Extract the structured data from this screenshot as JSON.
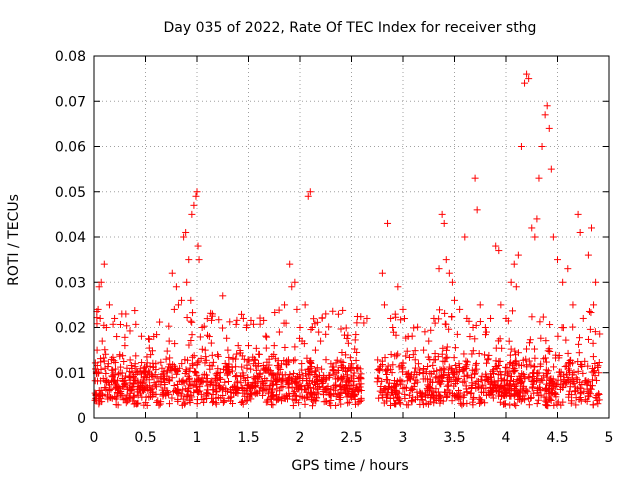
{
  "chart_data": {
    "type": "scatter",
    "title": "Day 035 of 2022, Rate Of TEC Index for receiver sthg",
    "xlabel": "GPS time / hours",
    "ylabel": "ROTI / TECUs",
    "xlim": [
      0,
      5
    ],
    "ylim": [
      0,
      0.08
    ],
    "grid": true,
    "marker": "+",
    "color": "#ff0000",
    "xticks": [
      0,
      0.5,
      1,
      1.5,
      2,
      2.5,
      3,
      3.5,
      4,
      4.5,
      5
    ],
    "xtick_labels": [
      "0",
      "0.5",
      "1",
      "1.5",
      "2",
      "2.5",
      "3",
      "3.5",
      "4",
      "4.5",
      "5"
    ],
    "yticks": [
      0,
      0.01,
      0.02,
      0.03,
      0.04,
      0.05,
      0.06,
      0.07,
      0.08
    ],
    "ytick_labels": [
      "0",
      "0.01",
      "0.02",
      "0.03",
      "0.04",
      "0.05",
      "0.06",
      "0.07",
      "0.08"
    ],
    "series": [
      {
        "name": "ROTI",
        "points": [
          [
            0.02,
            0.005
          ],
          [
            0.03,
            0.015
          ],
          [
            0.04,
            0.024
          ],
          [
            0.05,
            0.029
          ],
          [
            0.06,
            0.022
          ],
          [
            0.07,
            0.03
          ],
          [
            0.08,
            0.017
          ],
          [
            0.1,
            0.034
          ],
          [
            0.12,
            0.02
          ],
          [
            0.14,
            0.012
          ],
          [
            0.15,
            0.025
          ],
          [
            0.17,
            0.008
          ],
          [
            0.2,
            0.022
          ],
          [
            0.22,
            0.018
          ],
          [
            0.25,
            0.014
          ],
          [
            0.27,
            0.023
          ],
          [
            0.3,
            0.016
          ],
          [
            0.32,
            0.011
          ],
          [
            0.35,
            0.009
          ],
          [
            0.38,
            0.007
          ],
          [
            0.4,
            0.012
          ],
          [
            0.45,
            0.006
          ],
          [
            0.5,
            0.01
          ],
          [
            0.55,
            0.014
          ],
          [
            0.58,
            0.018
          ],
          [
            0.6,
            0.012
          ],
          [
            0.63,
            0.008
          ],
          [
            0.66,
            0.011
          ],
          [
            0.7,
            0.013
          ],
          [
            0.73,
            0.017
          ],
          [
            0.76,
            0.032
          ],
          [
            0.78,
            0.024
          ],
          [
            0.8,
            0.029
          ],
          [
            0.82,
            0.025
          ],
          [
            0.85,
            0.026
          ],
          [
            0.87,
            0.04
          ],
          [
            0.89,
            0.041
          ],
          [
            0.9,
            0.03
          ],
          [
            0.92,
            0.035
          ],
          [
            0.94,
            0.026
          ],
          [
            0.95,
            0.045
          ],
          [
            0.97,
            0.047
          ],
          [
            0.99,
            0.049
          ],
          [
            1.0,
            0.05
          ],
          [
            1.01,
            0.038
          ],
          [
            1.02,
            0.035
          ],
          [
            1.05,
            0.02
          ],
          [
            1.08,
            0.015
          ],
          [
            1.12,
            0.018
          ],
          [
            1.15,
            0.023
          ],
          [
            1.2,
            0.014
          ],
          [
            1.25,
            0.027
          ],
          [
            1.3,
            0.015
          ],
          [
            1.35,
            0.013
          ],
          [
            1.4,
            0.016
          ],
          [
            1.45,
            0.022
          ],
          [
            1.48,
            0.02
          ],
          [
            1.5,
            0.016
          ],
          [
            1.55,
            0.012
          ],
          [
            1.6,
            0.009
          ],
          [
            1.65,
            0.011
          ],
          [
            1.7,
            0.013
          ],
          [
            1.75,
            0.016
          ],
          [
            1.8,
            0.019
          ],
          [
            1.85,
            0.025
          ],
          [
            1.9,
            0.034
          ],
          [
            1.92,
            0.029
          ],
          [
            1.95,
            0.03
          ],
          [
            1.97,
            0.024
          ],
          [
            2.0,
            0.02
          ],
          [
            2.02,
            0.017
          ],
          [
            2.05,
            0.025
          ],
          [
            2.08,
            0.049
          ],
          [
            2.1,
            0.05
          ],
          [
            2.12,
            0.02
          ],
          [
            2.15,
            0.015
          ],
          [
            2.2,
            0.017
          ],
          [
            2.25,
            0.023
          ],
          [
            2.3,
            0.012
          ],
          [
            2.35,
            0.01
          ],
          [
            2.4,
            0.009
          ],
          [
            2.45,
            0.008
          ],
          [
            2.5,
            0.012
          ],
          [
            2.55,
            0.011
          ],
          [
            2.58,
            0.009
          ],
          [
            2.62,
            0.021
          ],
          [
            2.65,
            0.022
          ],
          [
            2.75,
            0.008
          ],
          [
            2.8,
            0.032
          ],
          [
            2.82,
            0.025
          ],
          [
            2.85,
            0.043
          ],
          [
            2.88,
            0.022
          ],
          [
            2.9,
            0.02
          ],
          [
            2.95,
            0.029
          ],
          [
            3.0,
            0.024
          ],
          [
            3.05,
            0.018
          ],
          [
            3.1,
            0.014
          ],
          [
            3.15,
            0.012
          ],
          [
            3.2,
            0.015
          ],
          [
            3.25,
            0.017
          ],
          [
            3.3,
            0.022
          ],
          [
            3.35,
            0.033
          ],
          [
            3.38,
            0.045
          ],
          [
            3.4,
            0.043
          ],
          [
            3.42,
            0.035
          ],
          [
            3.45,
            0.032
          ],
          [
            3.48,
            0.03
          ],
          [
            3.5,
            0.026
          ],
          [
            3.55,
            0.024
          ],
          [
            3.6,
            0.04
          ],
          [
            3.62,
            0.022
          ],
          [
            3.65,
            0.018
          ],
          [
            3.68,
            0.02
          ],
          [
            3.7,
            0.053
          ],
          [
            3.72,
            0.046
          ],
          [
            3.75,
            0.025
          ],
          [
            3.8,
            0.02
          ],
          [
            3.85,
            0.022
          ],
          [
            3.9,
            0.038
          ],
          [
            3.93,
            0.037
          ],
          [
            3.95,
            0.025
          ],
          [
            4.0,
            0.022
          ],
          [
            4.05,
            0.03
          ],
          [
            4.08,
            0.034
          ],
          [
            4.1,
            0.029
          ],
          [
            4.12,
            0.036
          ],
          [
            4.15,
            0.06
          ],
          [
            4.18,
            0.074
          ],
          [
            4.2,
            0.076
          ],
          [
            4.22,
            0.075
          ],
          [
            4.25,
            0.042
          ],
          [
            4.28,
            0.04
          ],
          [
            4.3,
            0.044
          ],
          [
            4.32,
            0.053
          ],
          [
            4.35,
            0.06
          ],
          [
            4.38,
            0.067
          ],
          [
            4.4,
            0.069
          ],
          [
            4.42,
            0.064
          ],
          [
            4.44,
            0.055
          ],
          [
            4.46,
            0.04
          ],
          [
            4.5,
            0.035
          ],
          [
            4.55,
            0.03
          ],
          [
            4.6,
            0.033
          ],
          [
            4.65,
            0.025
          ],
          [
            4.7,
            0.045
          ],
          [
            4.72,
            0.041
          ],
          [
            4.75,
            0.022
          ],
          [
            4.8,
            0.036
          ],
          [
            4.83,
            0.042
          ],
          [
            4.85,
            0.025
          ],
          [
            4.87,
            0.03
          ],
          [
            4.9,
            0.01
          ]
        ]
      }
    ],
    "baseline": {
      "description_level": 0.005,
      "spread": 0.004,
      "count": 1400,
      "gap": [
        2.6,
        2.75
      ]
    }
  }
}
